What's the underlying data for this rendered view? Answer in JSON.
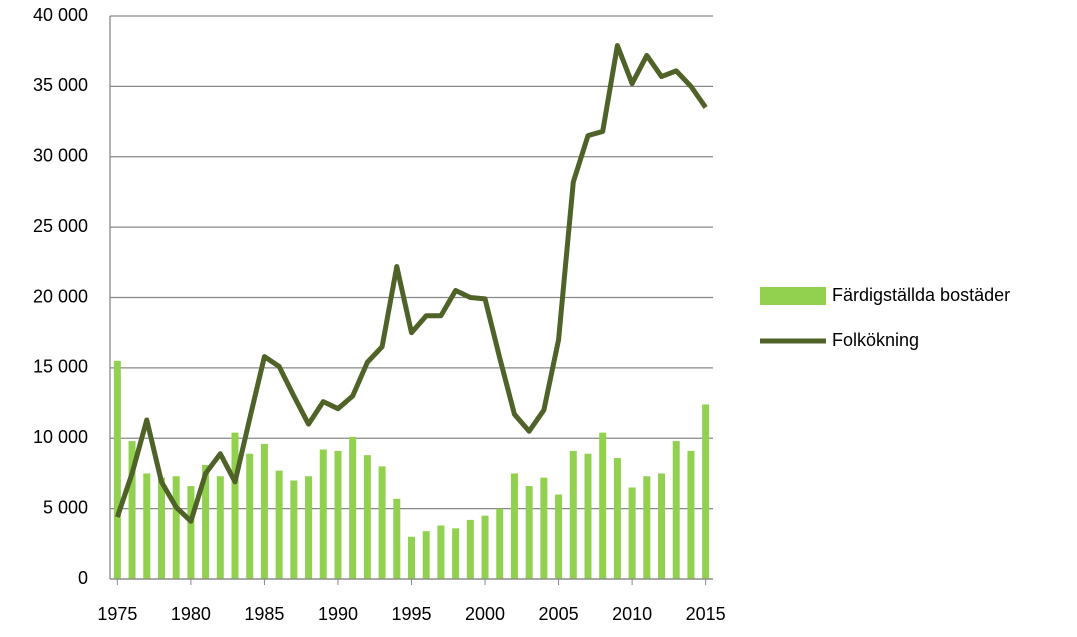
{
  "chart_data": {
    "type": "bar-line",
    "x": [
      1975,
      1976,
      1977,
      1978,
      1979,
      1980,
      1981,
      1982,
      1983,
      1984,
      1985,
      1986,
      1987,
      1988,
      1989,
      1990,
      1991,
      1992,
      1993,
      1994,
      1995,
      1996,
      1997,
      1998,
      1999,
      2000,
      2001,
      2002,
      2003,
      2004,
      2005,
      2006,
      2007,
      2008,
      2009,
      2010,
      2011,
      2012,
      2013,
      2014,
      2015
    ],
    "xlim": [
      1974.5,
      2015.5
    ],
    "xticks": [
      1975,
      1980,
      1985,
      1990,
      1995,
      2000,
      2005,
      2010,
      2015
    ],
    "ylim": [
      0,
      40000
    ],
    "yticks": [
      0,
      {
        "value": 5000,
        "label": "5 000"
      },
      {
        "value": 10000,
        "label": "10 000"
      },
      {
        "value": 15000,
        "label": "15 000"
      },
      {
        "value": 20000,
        "label": "20 000"
      },
      {
        "value": 25000,
        "label": "25 000"
      },
      {
        "value": 30000,
        "label": "30 000"
      },
      {
        "value": 35000,
        "label": "35 000"
      },
      {
        "value": 40000,
        "label": "40 000"
      }
    ],
    "grid": true,
    "legend": "right",
    "series": [
      {
        "name": "Färdigställda bostäder",
        "type": "bar",
        "color": "#92d050",
        "values": [
          15500,
          9800,
          7500,
          7200,
          7300,
          6600,
          8100,
          7300,
          10400,
          8900,
          9600,
          7700,
          7000,
          7300,
          9200,
          9100,
          10100,
          8800,
          8000,
          5700,
          3000,
          3400,
          3800,
          3600,
          4200,
          4500,
          5000,
          7500,
          6600,
          7200,
          6000,
          9100,
          8900,
          10400,
          8600,
          6500,
          7300,
          7500,
          9800,
          9100,
          12400
        ]
      },
      {
        "name": "Folkökning",
        "type": "line",
        "color": "#4f6228",
        "values": [
          4400,
          7500,
          11300,
          6900,
          5100,
          4100,
          7500,
          8900,
          6900,
          11400,
          15800,
          15100,
          13000,
          11000,
          12600,
          12100,
          13000,
          15400,
          16500,
          22200,
          17500,
          18700,
          18700,
          20500,
          20000,
          19900,
          15700,
          11700,
          10500,
          12000,
          17000,
          28200,
          31500,
          31800,
          37900,
          35200,
          37200,
          35700,
          36100,
          35000,
          33500
        ]
      }
    ]
  }
}
